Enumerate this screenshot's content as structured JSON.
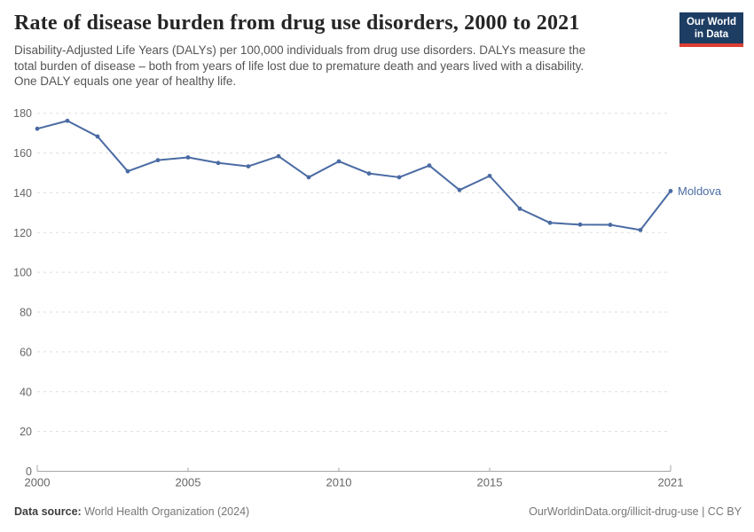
{
  "header": {
    "title": "Rate of disease burden from drug use disorders, 2000 to 2021",
    "subtitle_lines": [
      "Disability-Adjusted Life Years (DALYs) per 100,000 individuals from drug use disorders. DALYs measure the",
      "total burden of disease – both from years of life lost due to premature death and years lived with a disability.",
      "One DALY equals one year of healthy life."
    ],
    "logo": {
      "line1": "Our World",
      "line2": "in Data",
      "bg_color": "#1d3d63",
      "accent_color": "#dc3e32"
    }
  },
  "chart_data": {
    "type": "line",
    "title": "Rate of disease burden from drug use disorders, 2000 to 2021",
    "ylabel": "",
    "xlabel": "",
    "x": [
      2000,
      2001,
      2002,
      2003,
      2004,
      2005,
      2006,
      2007,
      2008,
      2009,
      2010,
      2011,
      2012,
      2013,
      2014,
      2015,
      2016,
      2017,
      2018,
      2019,
      2020,
      2021
    ],
    "series": [
      {
        "name": "Moldova",
        "color": "#4a6ba3",
        "values": [
          172.2,
          176.2,
          168.3,
          150.8,
          156.4,
          157.8,
          155.0,
          153.3,
          158.4,
          147.8,
          155.8,
          149.7,
          147.8,
          153.7,
          141.4,
          148.5,
          132.0,
          124.9,
          124.0,
          123.9,
          121.3,
          140.9
        ]
      }
    ],
    "ylim": [
      0,
      180
    ],
    "yticks": [
      0,
      20,
      40,
      60,
      80,
      100,
      120,
      140,
      160,
      180
    ],
    "xticks": [
      2000,
      2005,
      2010,
      2015,
      2021
    ],
    "grid": "horizontal-dashed",
    "legend_position": "end-of-line-label",
    "colors": {
      "grid": "#dddddd",
      "axis": "#a5a5a5",
      "tick_text": "#666666"
    }
  },
  "footer": {
    "source_label": "Data source:",
    "source_value": "World Health Organization (2024)",
    "license": "OurWorldinData.org/illicit-drug-use | CC BY"
  }
}
